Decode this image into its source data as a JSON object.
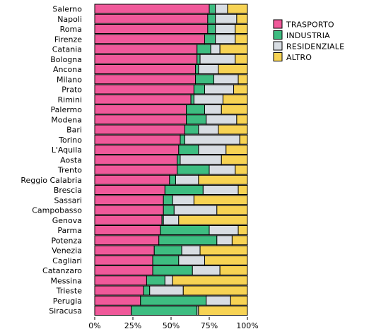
{
  "chart_data": {
    "type": "bar",
    "orientation": "horizontal",
    "stacked": true,
    "normalized": true,
    "title": "",
    "xlabel": "",
    "ylabel": "",
    "xlim": [
      0,
      100
    ],
    "x_ticks": [
      "0%",
      "25%",
      "50%",
      "75%",
      "100%"
    ],
    "grid": false,
    "legend_position": "top-right",
    "categories": [
      "Salerno",
      "Napoli",
      "Roma",
      "Firenze",
      "Catania",
      "Bologna",
      "Ancona",
      "Milano",
      "Prato",
      "Rimini",
      "Palermo",
      "Modena",
      "Bari",
      "Torino",
      "L'Aquila",
      "Aosta",
      "Trento",
      "Reggio Calabria",
      "Brescia",
      "Sassari",
      "Campobasso",
      "Genova",
      "Parma",
      "Potenza",
      "Venezia",
      "Cagliari",
      "Catanzaro",
      "Messina",
      "Trieste",
      "Perugia",
      "Siracusa"
    ],
    "series": [
      {
        "name": "TRASPORTO",
        "color": "#f0599a",
        "values": [
          75,
          74,
          74,
          72,
          67,
          67,
          66,
          66,
          65,
          63,
          60,
          60,
          59,
          56,
          55,
          54,
          54,
          49,
          46,
          45,
          45,
          44,
          43,
          42,
          39,
          38,
          38,
          34,
          32,
          30,
          24
        ]
      },
      {
        "name": "INDUSTRIA",
        "color": "#3ebd81",
        "values": [
          4,
          5,
          5,
          7,
          9,
          2,
          2,
          12,
          7,
          2,
          12,
          13,
          9,
          3,
          13,
          2,
          21,
          4,
          25,
          6,
          7,
          1,
          32,
          38,
          18,
          17,
          26,
          12,
          4,
          43,
          43
        ]
      },
      {
        "name": "RESIDENZIALE",
        "color": "#d8dde3",
        "values": [
          8,
          14,
          13,
          13,
          6,
          23,
          13,
          16,
          19,
          19,
          11,
          20,
          13,
          36,
          18,
          27,
          17,
          15,
          23,
          14,
          28,
          10,
          19,
          10,
          12,
          17,
          18,
          5,
          22,
          16,
          1
        ]
      },
      {
        "name": "ALTRO",
        "color": "#f7d354",
        "values": [
          13,
          7,
          8,
          8,
          18,
          8,
          19,
          6,
          9,
          16,
          17,
          7,
          19,
          5,
          14,
          17,
          8,
          32,
          6,
          35,
          20,
          45,
          6,
          10,
          31,
          28,
          18,
          49,
          42,
          11,
          32
        ]
      }
    ]
  }
}
